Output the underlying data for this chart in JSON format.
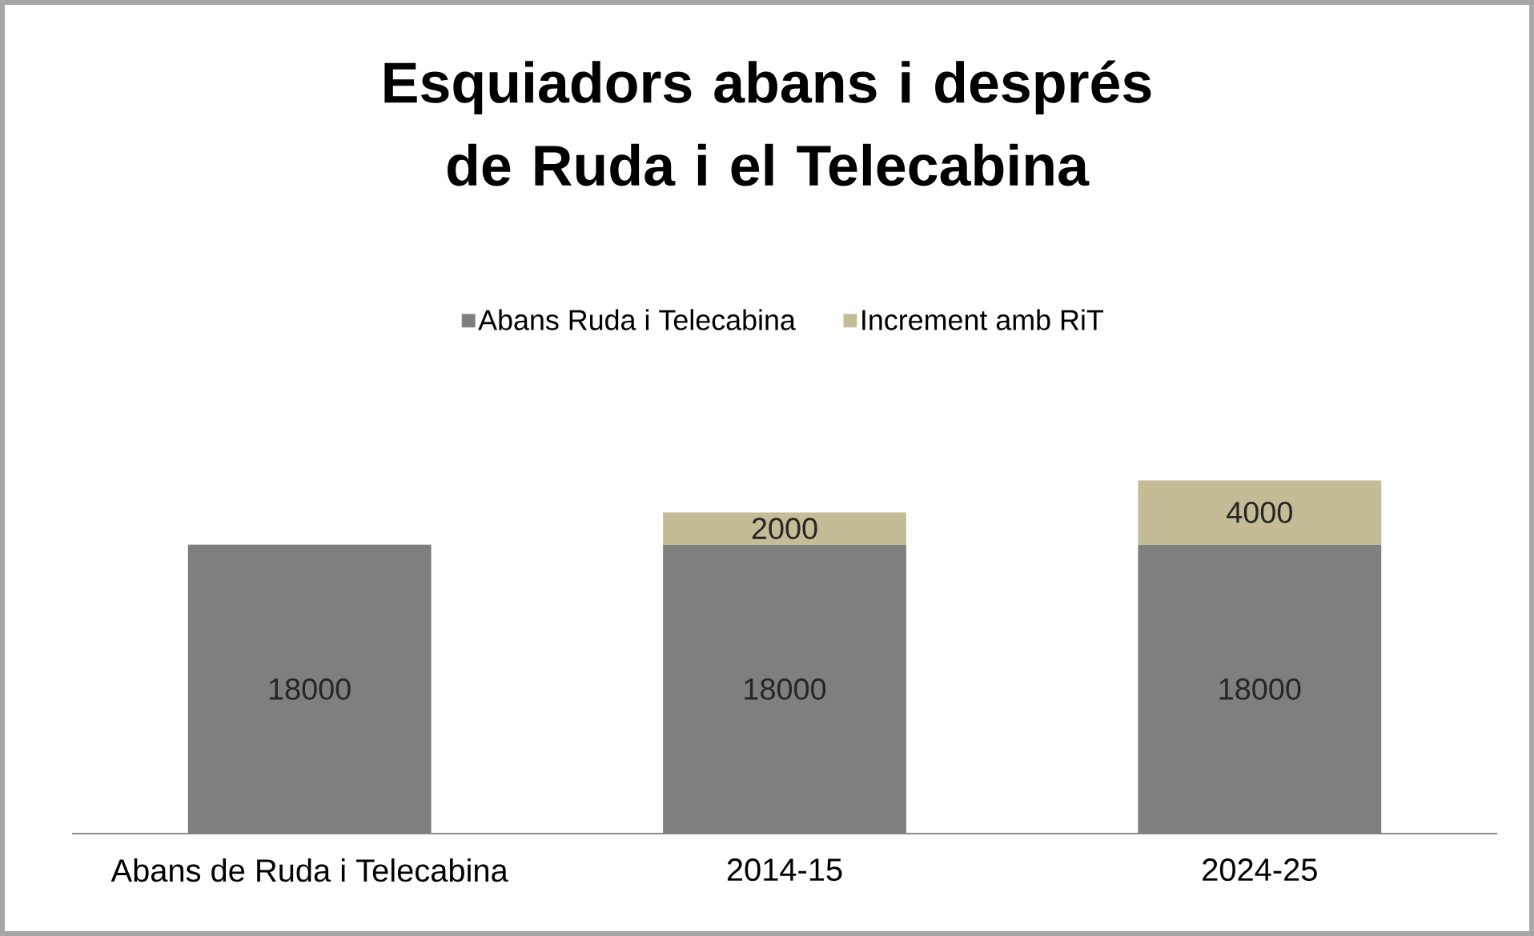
{
  "chart_data": {
    "type": "bar",
    "title": "Esquiadors abans i després de Ruda i el Telecabina",
    "categories": [
      "Abans de Ruda i Telecabina",
      "2014-15",
      "2024-25"
    ],
    "series": [
      {
        "name": "Abans Ruda i Telecabina",
        "color": "#7f7f7f",
        "values": [
          18000,
          18000,
          18000
        ]
      },
      {
        "name": "Increment amb RiT",
        "color": "#c4bc96",
        "values": [
          null,
          2000,
          4000
        ]
      }
    ],
    "stacked": true,
    "data_labels": true,
    "legend": "top"
  }
}
